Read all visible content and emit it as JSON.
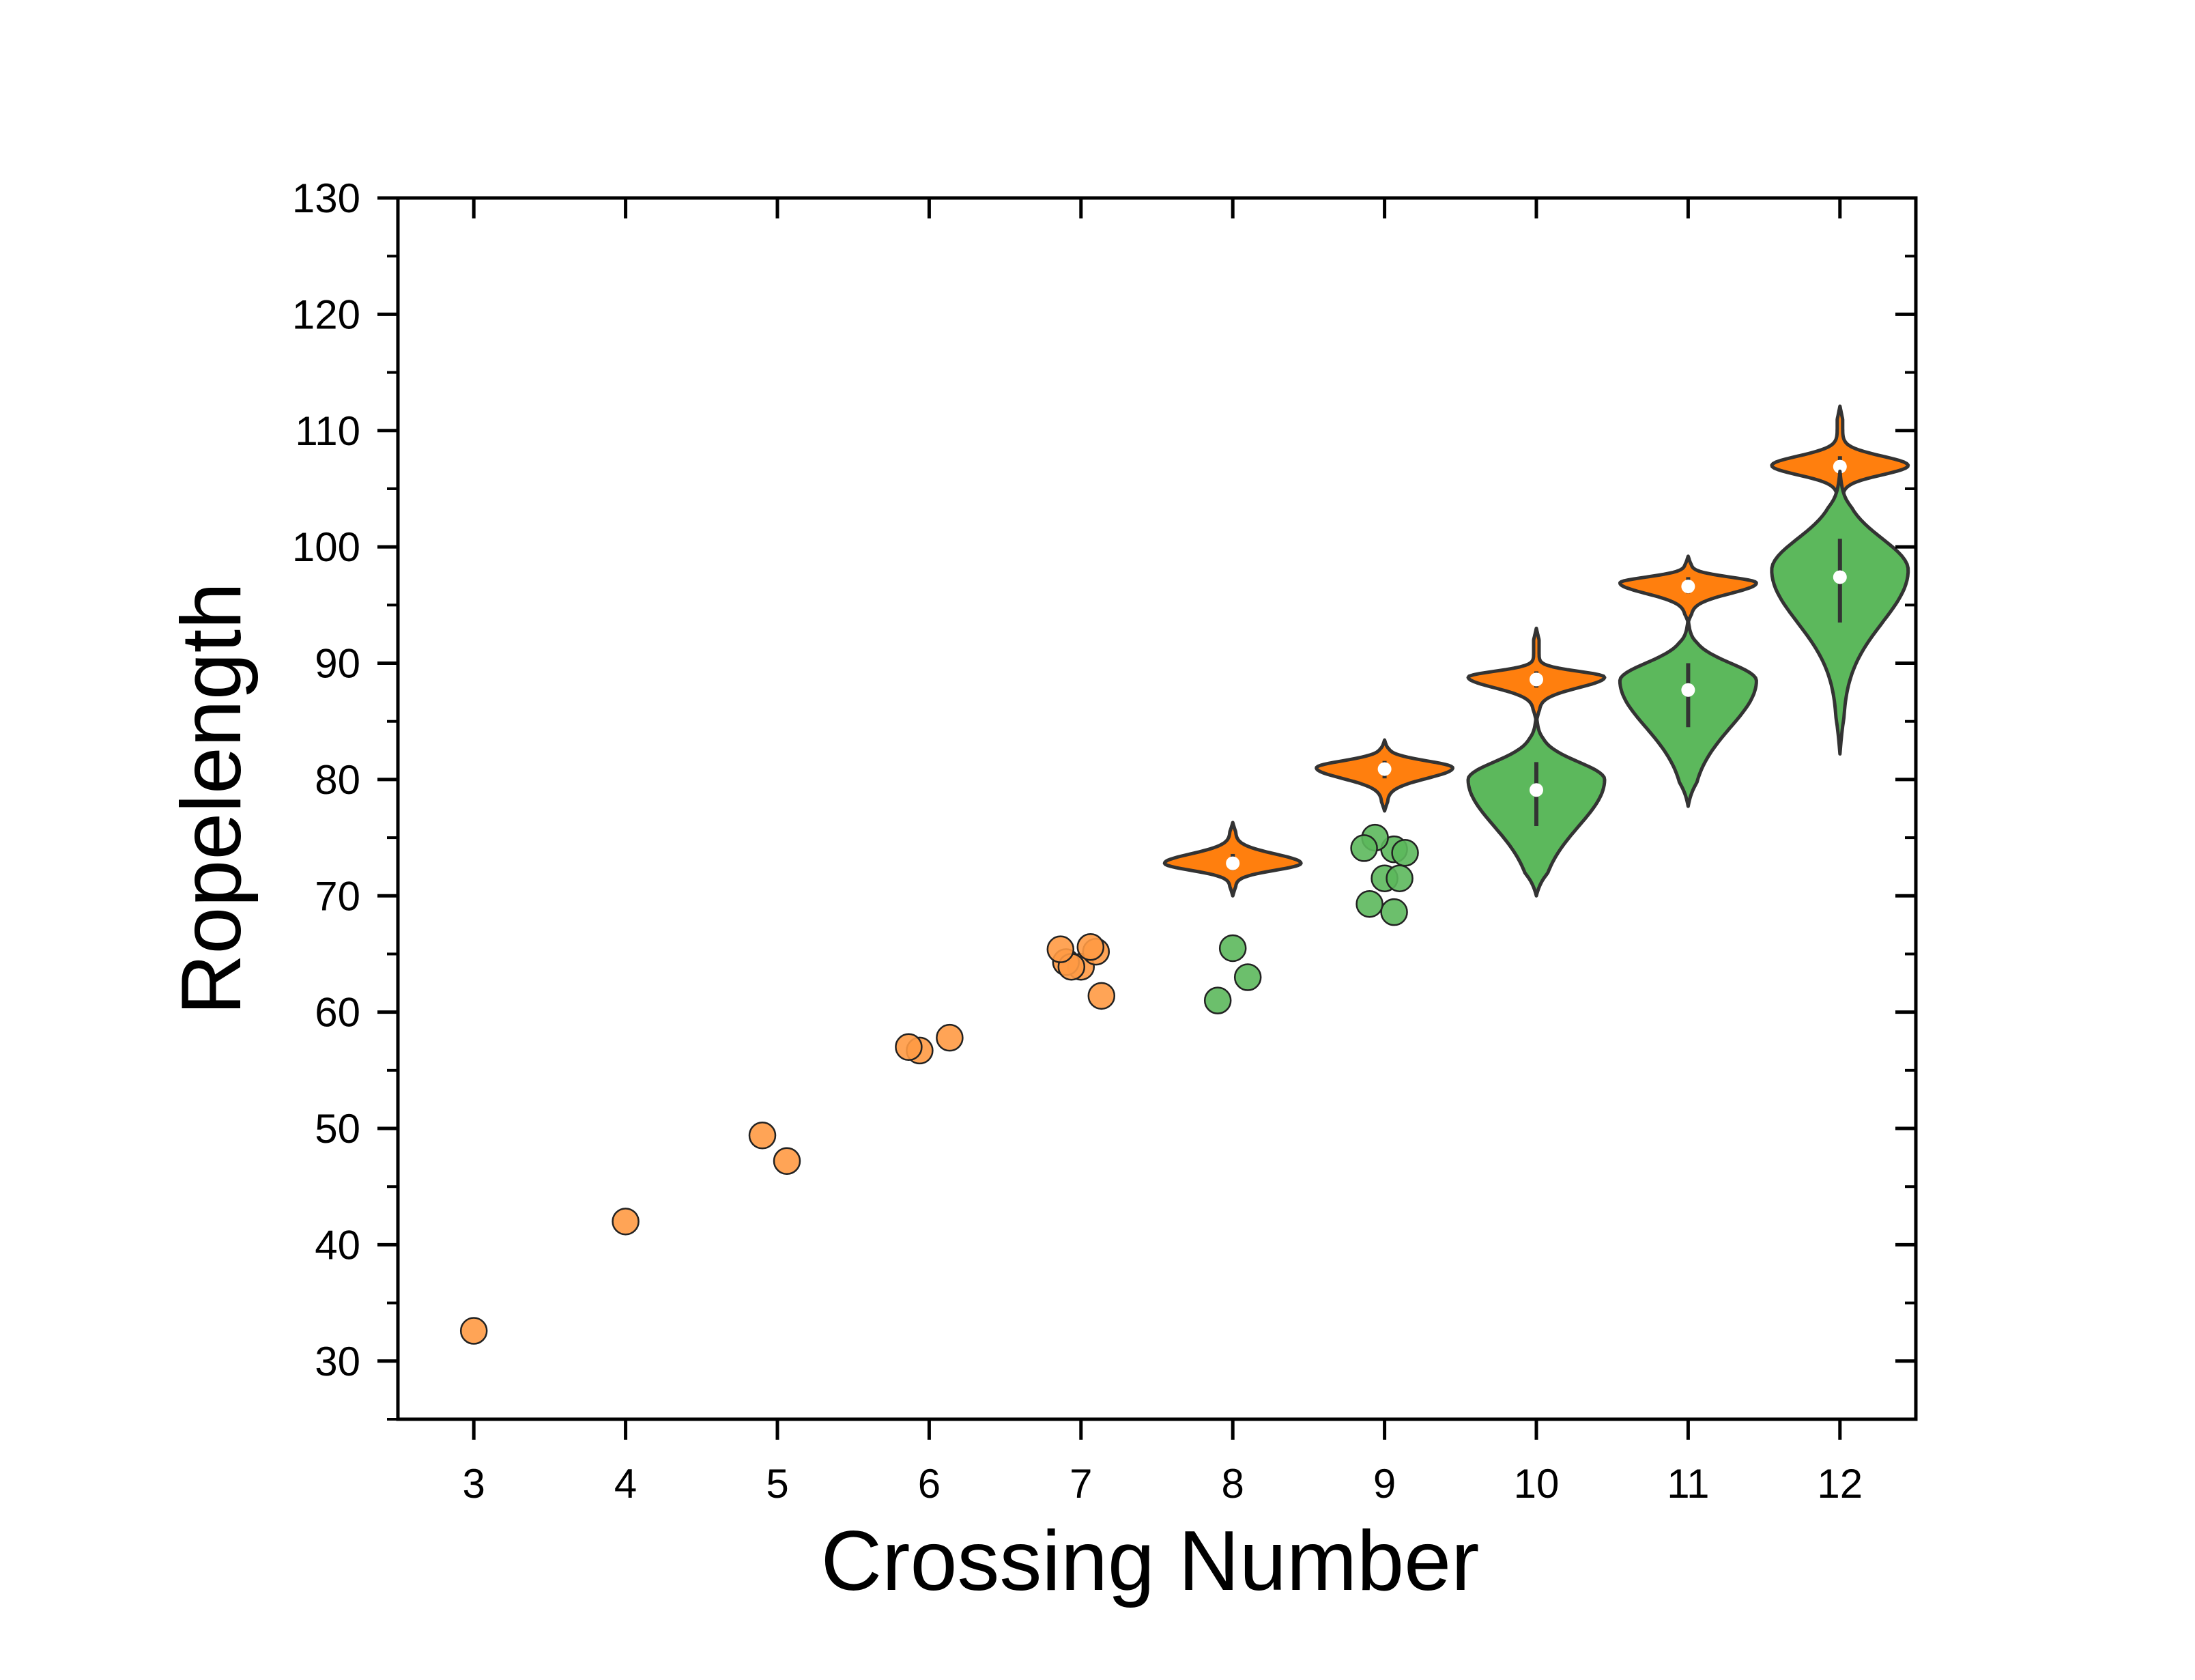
{
  "chart_data": {
    "type": "violin",
    "xlabel": "Crossing Number",
    "ylabel": "Ropelength",
    "xlim": [
      2.5,
      12.5
    ],
    "ylim": [
      25,
      130
    ],
    "x_ticks": [
      3,
      4,
      5,
      6,
      7,
      8,
      9,
      10,
      11,
      12
    ],
    "y_ticks": [
      30,
      40,
      50,
      60,
      70,
      80,
      90,
      100,
      110,
      120,
      130
    ],
    "grid": false,
    "legend": "none",
    "colors": {
      "orange": "#FF7F0E",
      "orange_points": "#FF9A44",
      "green": "#5CB85C",
      "outline": "#333333",
      "median_dot": "#FFFFFF"
    },
    "series": [
      {
        "color_key": "orange",
        "points": [
          {
            "x": 3,
            "y": 32.6
          },
          {
            "x": 4,
            "y": 42.0
          },
          {
            "x": 5,
            "y": 49.4
          },
          {
            "x": 5,
            "y": 47.2
          },
          {
            "x": 6,
            "y": 56.7
          },
          {
            "x": 6,
            "y": 57.8
          },
          {
            "x": 6,
            "y": 57.0
          },
          {
            "x": 7,
            "y": 63.9
          },
          {
            "x": 7,
            "y": 65.2
          },
          {
            "x": 7,
            "y": 64.3
          },
          {
            "x": 7,
            "y": 65.6
          },
          {
            "x": 7,
            "y": 63.9
          },
          {
            "x": 7,
            "y": 61.4
          },
          {
            "x": 7,
            "y": 65.4
          }
        ],
        "violins": [
          {
            "x": 8,
            "min": 70.0,
            "max": 76.3,
            "median": 72.8,
            "mode": 72.8,
            "q1": 72.2,
            "q3": 73.6
          },
          {
            "x": 9,
            "min": 77.3,
            "max": 83.4,
            "median": 80.9,
            "mode": 81.0,
            "q1": 80.1,
            "q3": 81.6
          },
          {
            "x": 10,
            "min": 85.0,
            "max": 93.0,
            "median": 88.6,
            "mode": 88.8,
            "q1": 87.9,
            "q3": 89.3
          },
          {
            "x": 11,
            "min": 93.5,
            "max": 99.2,
            "median": 96.6,
            "mode": 96.9,
            "q1": 96.0,
            "q3": 97.4
          },
          {
            "x": 12,
            "min": 103.0,
            "max": 112.1,
            "median": 106.9,
            "mode": 107.0,
            "q1": 106.2,
            "q3": 107.8
          }
        ]
      },
      {
        "color_key": "green",
        "points": [
          {
            "x": 8,
            "y": 65.5
          },
          {
            "x": 8,
            "y": 63.0
          },
          {
            "x": 8,
            "y": 61.0
          },
          {
            "x": 9,
            "y": 74.0
          },
          {
            "x": 9,
            "y": 75.0
          },
          {
            "x": 9,
            "y": 73.7
          },
          {
            "x": 9,
            "y": 74.1
          },
          {
            "x": 9,
            "y": 71.5
          },
          {
            "x": 9,
            "y": 71.5
          },
          {
            "x": 9,
            "y": 69.3
          },
          {
            "x": 9,
            "y": 68.6
          }
        ],
        "violins": [
          {
            "x": 10,
            "min": 70.0,
            "max": 85.5,
            "median": 79.1,
            "mode": 80.0,
            "q1": 76.0,
            "q3": 81.5
          },
          {
            "x": 11,
            "min": 77.7,
            "max": 93.8,
            "median": 87.7,
            "mode": 88.5,
            "q1": 84.5,
            "q3": 90.0
          },
          {
            "x": 12,
            "min": 82.2,
            "max": 106.5,
            "median": 97.4,
            "mode": 98.0,
            "q1": 93.5,
            "q3": 100.7
          }
        ]
      }
    ]
  }
}
